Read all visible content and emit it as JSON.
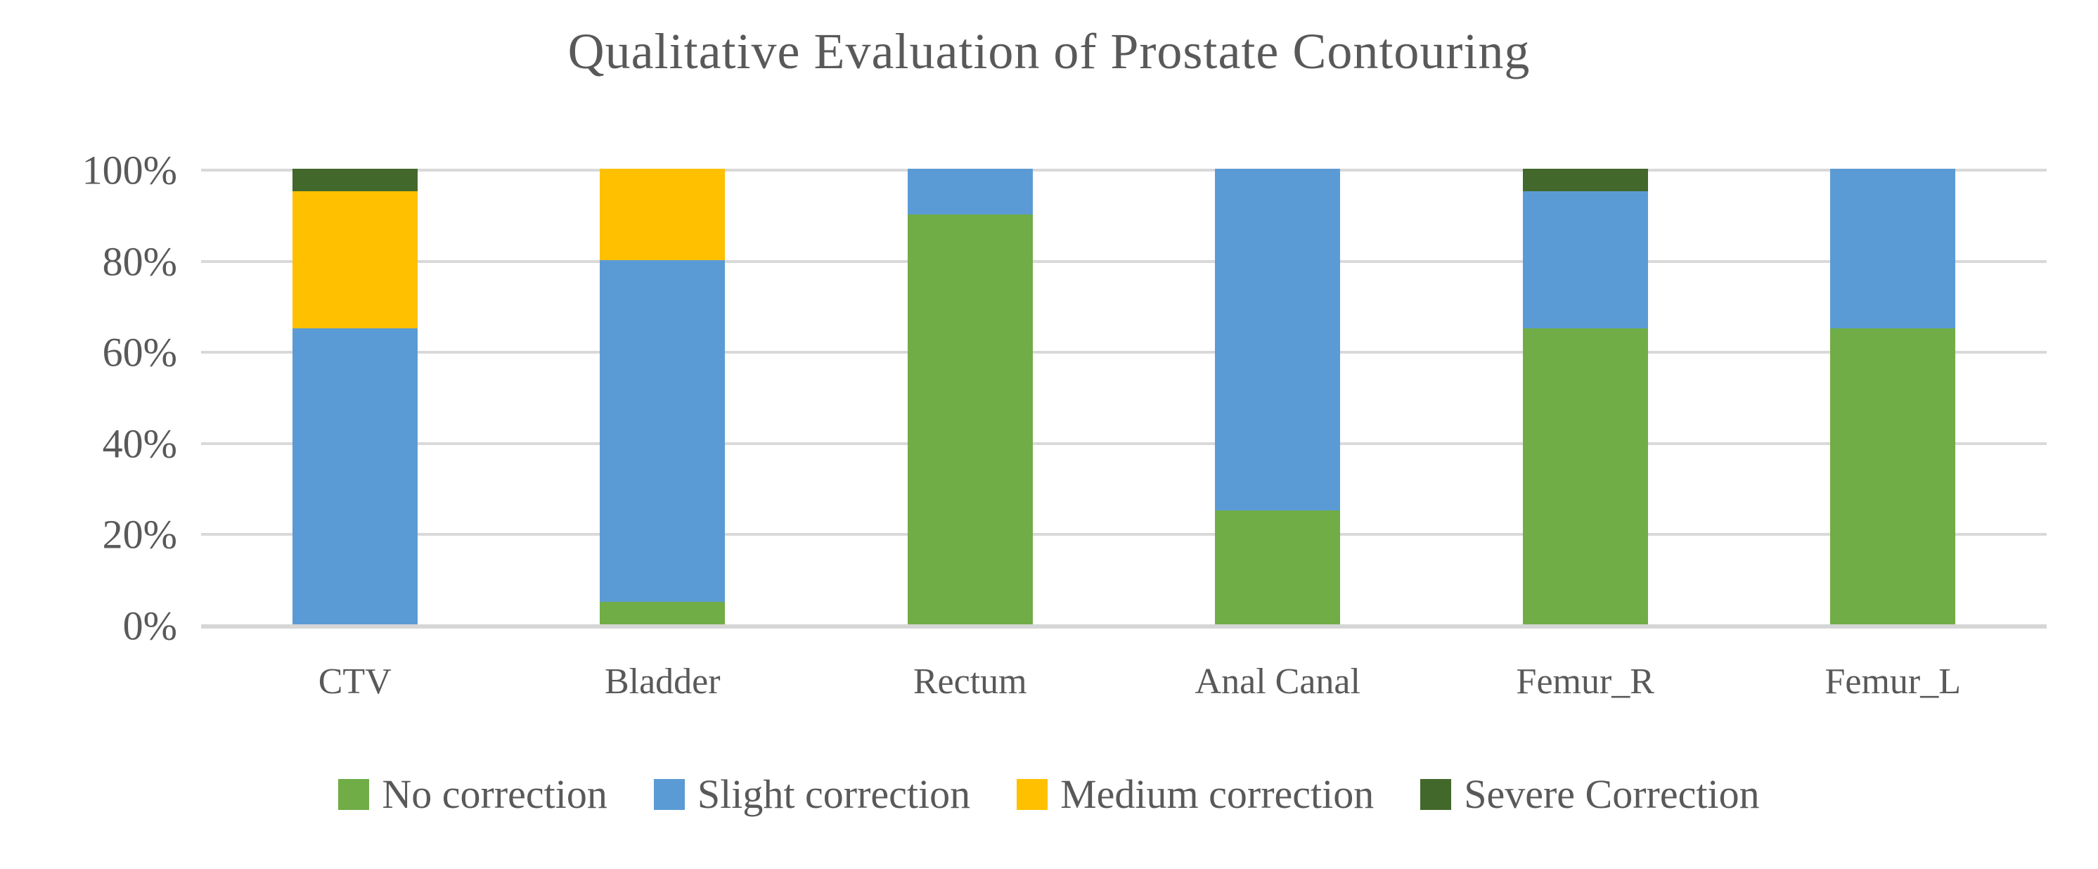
{
  "title": "Qualitative Evaluation of Prostate Contouring",
  "colors": {
    "no_correction": "#70AD47",
    "slight_correction": "#5B9BD5",
    "medium_correction": "#FFC000",
    "severe_correction": "#43682B",
    "gridline": "#D9D9D9",
    "text": "#595959",
    "background": "#FFFFFF"
  },
  "chart_data": {
    "type": "bar",
    "stacked": true,
    "units": "percent",
    "title": "Qualitative Evaluation of Prostate Contouring",
    "xlabel": "",
    "ylabel": "",
    "categories": [
      "CTV",
      "Bladder",
      "Rectum",
      "Anal Canal",
      "Femur_R",
      "Femur_L"
    ],
    "series": [
      {
        "name": "No correction",
        "color": "#70AD47",
        "values": [
          0,
          5,
          90,
          25,
          65,
          65
        ]
      },
      {
        "name": "Slight correction",
        "color": "#5B9BD5",
        "values": [
          65,
          75,
          10,
          75,
          30,
          35
        ]
      },
      {
        "name": "Medium correction",
        "color": "#FFC000",
        "values": [
          30,
          20,
          0,
          0,
          0,
          0
        ]
      },
      {
        "name": "Severe Correction",
        "color": "#43682B",
        "values": [
          5,
          0,
          0,
          0,
          5,
          0
        ]
      }
    ],
    "ylim": [
      0,
      100
    ],
    "y_ticks": [
      "100%",
      "80%",
      "60%",
      "40%",
      "20%",
      "0%"
    ],
    "grid": true,
    "legend_position": "bottom"
  }
}
